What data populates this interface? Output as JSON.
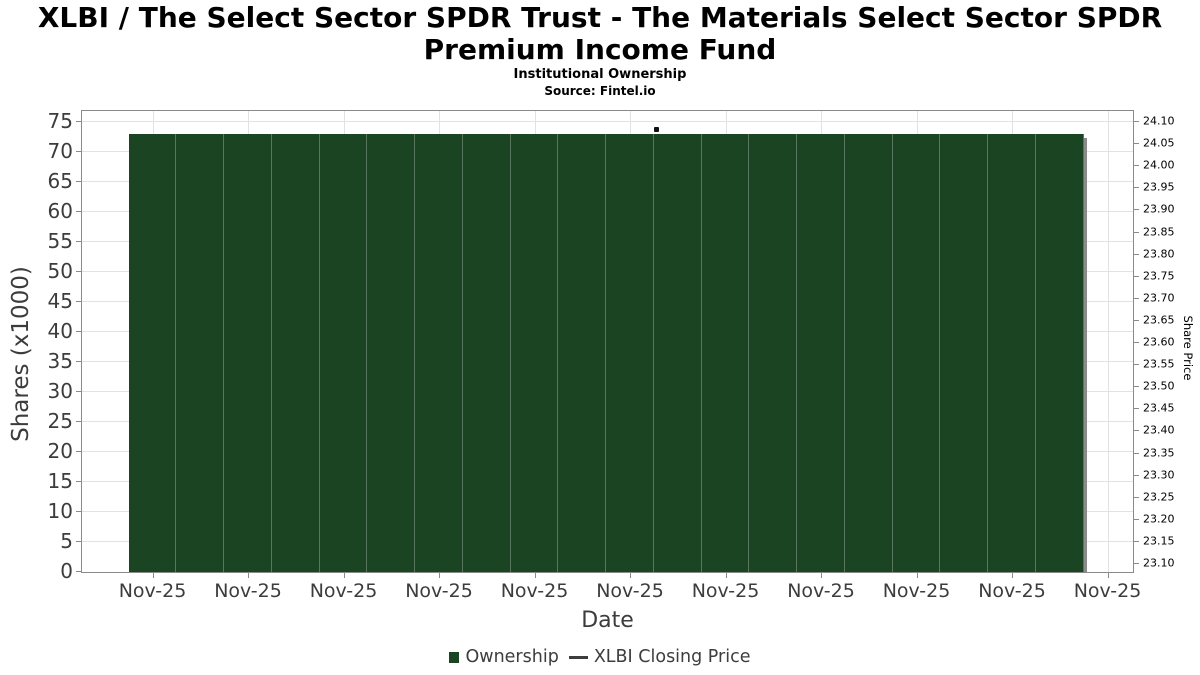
{
  "header": {
    "title": "XLBI / The Select Sector SPDR Trust - The Materials Select Sector SPDR Premium Income Fund",
    "subtitle": "Institutional Ownership",
    "source": "Source: Fintel.io"
  },
  "axes": {
    "left": {
      "label": "Shares (x1000)",
      "tick_values": [
        0,
        5,
        10,
        15,
        20,
        25,
        30,
        35,
        40,
        45,
        50,
        55,
        60,
        65,
        70,
        75
      ]
    },
    "right": {
      "label": "Share Price",
      "tick_labels": [
        "24.10",
        "24.05",
        "24.00",
        "23.95",
        "23.90",
        "23.85",
        "23.80",
        "23.75",
        "23.70",
        "23.65",
        "23.60",
        "23.55",
        "23.50",
        "23.45",
        "23.40",
        "23.35",
        "23.30",
        "23.25",
        "23.20",
        "23.15",
        "23.10"
      ]
    },
    "x": {
      "label": "Date",
      "tick_labels": [
        "Nov-25",
        "Nov-25",
        "Nov-25",
        "Nov-25",
        "Nov-25",
        "Nov-25",
        "Nov-25",
        "Nov-25",
        "Nov-25",
        "Nov-25",
        "Nov-25"
      ]
    }
  },
  "legend": {
    "items": [
      {
        "label": "Ownership",
        "symbol": "bar-swatch",
        "color": "#1b4423"
      },
      {
        "label": "XLBI Closing Price",
        "symbol": "line-swatch",
        "color": "#3d3d3d"
      }
    ]
  },
  "colors": {
    "bar": "#1b4423",
    "bar_shadow": "#8a8a8a",
    "grid": "#e2e2e2",
    "spine": "#8a8a8a",
    "marker": "#111111"
  },
  "chart_data": {
    "type": "bar",
    "title": "XLBI / The Select Sector SPDR Trust - The Materials Select Sector SPDR Premium Income Fund",
    "subtitle": "Institutional Ownership",
    "source": "Source: Fintel.io",
    "xlabel": "Date",
    "ylabel_left": "Shares (x1000)",
    "ylabel_right": "Share Price",
    "x_tick_labels": [
      "Nov-25",
      "Nov-25",
      "Nov-25",
      "Nov-25",
      "Nov-25",
      "Nov-25",
      "Nov-25",
      "Nov-25",
      "Nov-25",
      "Nov-25",
      "Nov-25"
    ],
    "ylim_left": [
      0,
      76.8
    ],
    "ylim_right": [
      23.08,
      24.12
    ],
    "left_tick_step": 5,
    "right_tick_step": 0.05,
    "grid": true,
    "legend_position": "bottom",
    "series": [
      {
        "name": "Ownership",
        "type": "bar",
        "y_axis": "left",
        "color": "#1b4423",
        "unit": "shares x1000",
        "values": [
          73,
          73,
          73,
          73,
          73,
          73,
          73,
          73,
          73,
          73,
          73,
          73,
          73,
          73,
          73,
          73,
          73,
          73,
          73,
          73
        ]
      },
      {
        "name": "XLBI Closing Price",
        "type": "scatter",
        "y_axis": "right",
        "color": "#111111",
        "points": [
          {
            "x_fraction": 0.5466,
            "price": 24.08
          }
        ]
      }
    ]
  }
}
